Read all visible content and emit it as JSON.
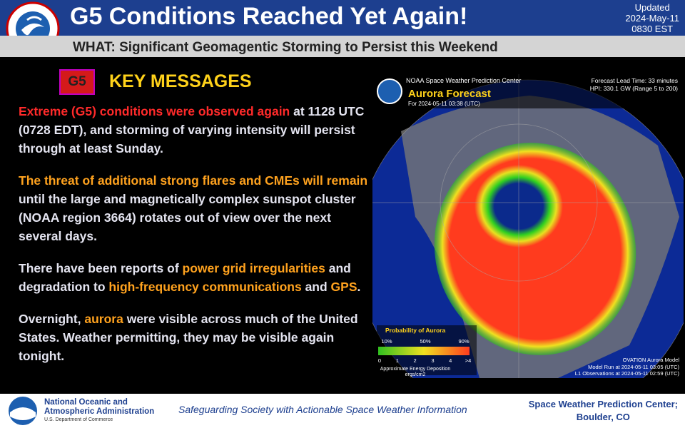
{
  "header": {
    "title": "G5 Conditions Reached Yet Again!",
    "updated": [
      "Updated",
      "2024-May-11",
      "0830 EST"
    ],
    "subtitle": "WHAT: Significant Geomagentic Storming to Persist this Weekend"
  },
  "key_messages": {
    "badge": "G5",
    "heading": "KEY MESSAGES",
    "paragraphs": [
      [
        {
          "text": "Extreme (G5) conditions were observed again",
          "color": "#ff2a2a"
        },
        {
          "text": " at 1128 UTC (0728 EDT), and storming of varying intensity will persist through at least Sunday.",
          "color": "#e4e4f0"
        }
      ],
      [
        {
          "text": "The threat of additional strong flares and CMEs will remain",
          "color": "#ffa21e"
        },
        {
          "text": " until the large and magnetically complex sunspot cluster (NOAA region 3664) rotates out of view over the next several days.",
          "color": "#e4e4f0"
        }
      ],
      [
        {
          "text": "There have been reports of ",
          "color": "#e4e4f0"
        },
        {
          "text": "power grid irregularities",
          "color": "#ffa21e"
        },
        {
          "text": " and degradation to ",
          "color": "#e4e4f0"
        },
        {
          "text": "high-frequency communications",
          "color": "#ffa21e"
        },
        {
          "text": " and ",
          "color": "#e4e4f0"
        },
        {
          "text": "GPS",
          "color": "#ffa21e"
        },
        {
          "text": ".",
          "color": "#e4e4f0"
        }
      ],
      [
        {
          "text": "Overnight, ",
          "color": "#e4e4f0"
        },
        {
          "text": "aurora",
          "color": "#ffa21e"
        },
        {
          "text": " were visible across much of the United States. Weather permitting, they may be visible again tonight.",
          "color": "#e4e4f0"
        }
      ]
    ]
  },
  "aurora_map": {
    "center": "NOAA Space Weather Prediction Center",
    "title": "Aurora Forecast",
    "time": "For 2024-05-11 03:38 (UTC)",
    "lead_time": "Forecast Lead Time:  33 minutes",
    "hpi": "HPI: 330.1 GW (Range 5 to 200)",
    "legend_title": "Probability of Aurora",
    "probabilities": [
      "10%",
      "50%",
      "90%"
    ],
    "energy_ticks": [
      "0",
      "1",
      "2",
      "3",
      "4",
      ">4"
    ],
    "energy_label": "Approximate Energy Deposition",
    "energy_unit": "ergs/cm2",
    "model": "OVATION Aurora Model",
    "model_run": "Model Run at 2024-05-11 03:05 (UTC)",
    "observations": "L1 Observations at 2024-05-11 02:59 (UTC)"
  },
  "footer": {
    "agency": [
      "National Oceanic and",
      "Atmospheric Administration"
    ],
    "department": "U.S. Department of Commerce",
    "tagline": "Safeguarding Society with Actionable Space Weather Information",
    "office": [
      "Space Weather Prediction Center;",
      "Boulder, CO"
    ]
  }
}
